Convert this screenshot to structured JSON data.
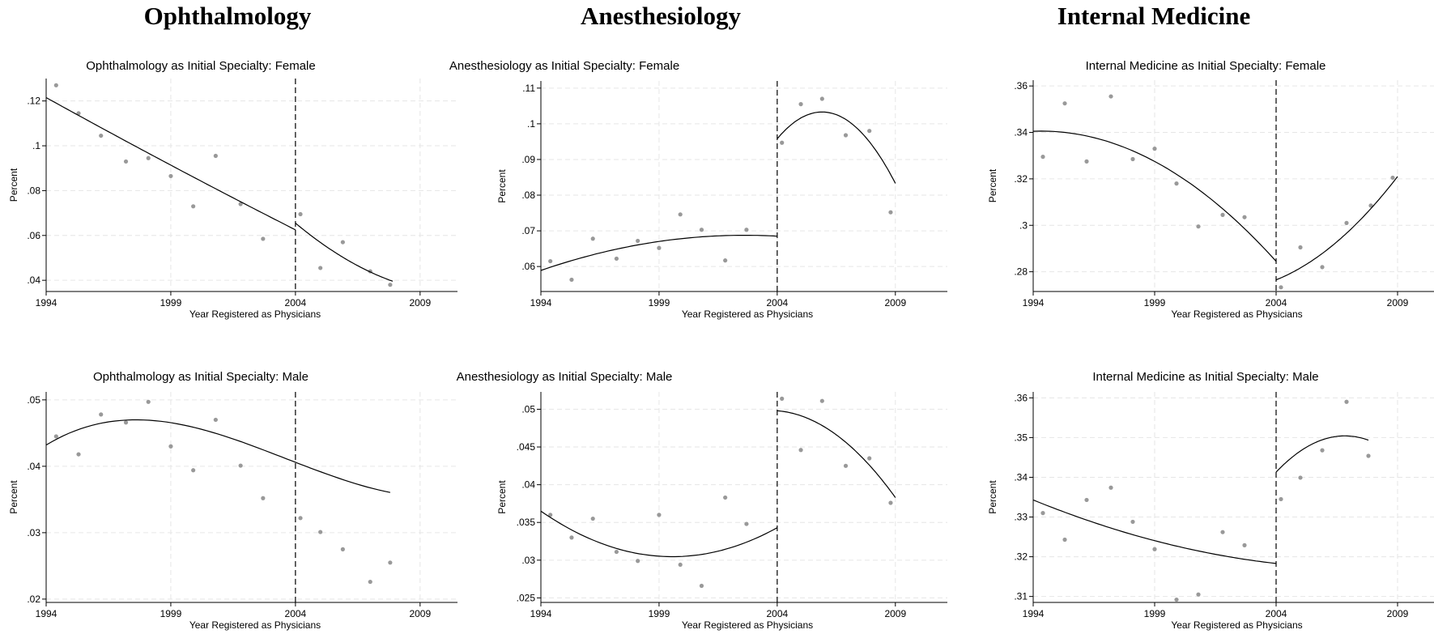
{
  "column_titles": [
    "Ophthalmology",
    "Anesthesiology",
    "Internal Medicine"
  ],
  "chart_data": [
    {
      "type": "scatter",
      "title": "Ophthalmology as Initial Specialty: Female",
      "xlabel": "Year Registered as Physicians",
      "ylabel": "Percent",
      "xlim": [
        1994,
        2010.5
      ],
      "ylim": [
        0.035,
        0.13
      ],
      "xticks": [
        1994,
        1999,
        2004,
        2009
      ],
      "xtick_labels": [
        "1994",
        "1999",
        "2004",
        "2009"
      ],
      "yticks": [
        0.04,
        0.06,
        0.08,
        0.1,
        0.12
      ],
      "ytick_labels": [
        ".04",
        ".06",
        ".08",
        ".1",
        ".12"
      ],
      "cutoff": 2004,
      "grid": true,
      "points": [
        [
          1994.4,
          0.127
        ],
        [
          1995.3,
          0.1145
        ],
        [
          1996.2,
          0.1045
        ],
        [
          1997.2,
          0.093
        ],
        [
          1998.1,
          0.0945
        ],
        [
          1999.0,
          0.0865
        ],
        [
          1999.9,
          0.073
        ],
        [
          2000.8,
          0.0955
        ],
        [
          2001.8,
          0.074
        ],
        [
          2002.7,
          0.0585
        ],
        [
          2004.2,
          0.0695
        ],
        [
          2005.0,
          0.0455
        ],
        [
          2005.9,
          0.057
        ],
        [
          2007.0,
          0.044
        ],
        [
          2007.8,
          0.038
        ]
      ],
      "fit": [
        {
          "from": 1994.0,
          "to": 2004.0,
          "coef": [
            0.1215,
            -0.00615,
            2.5e-05
          ]
        },
        {
          "from": 2004.0,
          "to": 2007.9,
          "coef": [
            0.0655,
            -0.0093,
            0.00068
          ]
        }
      ]
    },
    {
      "type": "scatter",
      "title": "Anesthesiology as Initial Specialty: Female",
      "xlabel": "Year Registered as Physicians",
      "ylabel": "Percent",
      "xlim": [
        1994,
        2011.2
      ],
      "ylim": [
        0.053,
        0.112
      ],
      "xticks": [
        1994,
        1999,
        2004,
        2009
      ],
      "xtick_labels": [
        "1994",
        "1999",
        "2004",
        "2009"
      ],
      "yticks": [
        0.06,
        0.07,
        0.08,
        0.09,
        0.1,
        0.11
      ],
      "ytick_labels": [
        ".06",
        ".07",
        ".08",
        ".09",
        ".1",
        ".11"
      ],
      "cutoff": 2004,
      "grid": true,
      "points": [
        [
          1994.4,
          0.0615
        ],
        [
          1995.3,
          0.0563
        ],
        [
          1996.2,
          0.0678
        ],
        [
          1997.2,
          0.0622
        ],
        [
          1998.1,
          0.0672
        ],
        [
          1999.0,
          0.0652
        ],
        [
          1999.9,
          0.0746
        ],
        [
          2000.8,
          0.0703
        ],
        [
          2001.8,
          0.0617
        ],
        [
          2002.7,
          0.0703
        ],
        [
          2004.2,
          0.0947
        ],
        [
          2005.0,
          0.1055
        ],
        [
          2005.9,
          0.107
        ],
        [
          2006.9,
          0.0968
        ],
        [
          2007.9,
          0.098
        ],
        [
          2008.8,
          0.0752
        ]
      ],
      "fit": [
        {
          "from": 1994.0,
          "to": 2004.0,
          "coef": [
            0.0589,
            0.00229,
            -0.000133
          ]
        },
        {
          "from": 2004.0,
          "to": 2009.0,
          "coef": [
            0.0958,
            0.0079,
            -0.00208
          ]
        }
      ]
    },
    {
      "type": "scatter",
      "title": "Internal Medicine as Initial Specialty: Female",
      "xlabel": "Year Registered as Physicians",
      "ylabel": "Percent",
      "xlim": [
        1994,
        2010.5
      ],
      "ylim": [
        0.2715,
        0.3625
      ],
      "xticks": [
        1994,
        1999,
        2004,
        2009
      ],
      "xtick_labels": [
        "1994",
        "1999",
        "2004",
        "2009"
      ],
      "yticks": [
        0.28,
        0.3,
        0.32,
        0.34,
        0.36
      ],
      "ytick_labels": [
        ".28",
        ".3",
        ".32",
        ".34",
        ".36"
      ],
      "cutoff": 2004,
      "grid": true,
      "points": [
        [
          1994.4,
          0.3295
        ],
        [
          1995.3,
          0.3525
        ],
        [
          1996.2,
          0.3275
        ],
        [
          1997.2,
          0.3555
        ],
        [
          1998.1,
          0.3285
        ],
        [
          1999.0,
          0.333
        ],
        [
          1999.9,
          0.318
        ],
        [
          2000.8,
          0.2995
        ],
        [
          2001.8,
          0.3045
        ],
        [
          2002.7,
          0.3035
        ],
        [
          2004.2,
          0.2733
        ],
        [
          2005.0,
          0.2905
        ],
        [
          2005.9,
          0.282
        ],
        [
          2006.9,
          0.301
        ],
        [
          2007.9,
          0.3085
        ],
        [
          2008.8,
          0.3205
        ]
      ],
      "fit": [
        {
          "from": 1994.0,
          "to": 2004.0,
          "coef": [
            0.3405,
            0.0004,
            -0.0006
          ]
        },
        {
          "from": 2004.0,
          "to": 2009.0,
          "coef": [
            0.2765,
            0.0042,
            0.00094
          ]
        }
      ]
    },
    {
      "type": "scatter",
      "title": "Ophthalmology as Initial Specialty: Male",
      "xlabel": "Year Registered as Physicians",
      "ylabel": "Percent",
      "xlim": [
        1994,
        2010.5
      ],
      "ylim": [
        0.0195,
        0.0512
      ],
      "xticks": [
        1994,
        1999,
        2004,
        2009
      ],
      "xtick_labels": [
        "1994",
        "1999",
        "2004",
        "2009"
      ],
      "yticks": [
        0.02,
        0.03,
        0.04,
        0.05
      ],
      "ytick_labels": [
        ".02",
        ".03",
        ".04",
        ".05"
      ],
      "cutoff": 2004,
      "grid": true,
      "points": [
        [
          1994.4,
          0.0445
        ],
        [
          1995.3,
          0.0418
        ],
        [
          1996.2,
          0.0478
        ],
        [
          1997.2,
          0.0466
        ],
        [
          1998.1,
          0.0497
        ],
        [
          1999.0,
          0.043
        ],
        [
          1999.9,
          0.0394
        ],
        [
          2000.8,
          0.047
        ],
        [
          2001.8,
          0.0401
        ],
        [
          2002.7,
          0.0352
        ],
        [
          2004.2,
          0.0322
        ],
        [
          2005.0,
          0.0301
        ],
        [
          2005.9,
          0.0275
        ],
        [
          2007.0,
          0.0226
        ],
        [
          2007.8,
          0.0255
        ]
      ],
      "fit": [
        {
          "from": 1994.0,
          "to": 2007.8,
          "coef": [
            0.0432,
            0.00228,
            -0.000389,
            1.35e-05
          ]
        }
      ]
    },
    {
      "type": "scatter",
      "title": "Anesthesiology as Initial Specialty: Male",
      "xlabel": "Year Registered as Physicians",
      "ylabel": "Percent",
      "xlim": [
        1994,
        2011.2
      ],
      "ylim": [
        0.0244,
        0.0523
      ],
      "xticks": [
        1994,
        1999,
        2004,
        2009
      ],
      "xtick_labels": [
        "1994",
        "1999",
        "2004",
        "2009"
      ],
      "yticks": [
        0.025,
        0.03,
        0.035,
        0.04,
        0.045,
        0.05
      ],
      "ytick_labels": [
        ".025",
        ".03",
        ".035",
        ".04",
        ".045",
        ".05"
      ],
      "cutoff": 2004,
      "grid": true,
      "points": [
        [
          1994.4,
          0.036
        ],
        [
          1995.3,
          0.033
        ],
        [
          1996.2,
          0.0355
        ],
        [
          1997.2,
          0.0311
        ],
        [
          1998.1,
          0.0299
        ],
        [
          1999.0,
          0.036
        ],
        [
          1999.9,
          0.0294
        ],
        [
          2000.8,
          0.0266
        ],
        [
          2001.8,
          0.0383
        ],
        [
          2002.7,
          0.0348
        ],
        [
          2004.2,
          0.0514
        ],
        [
          2005.0,
          0.0446
        ],
        [
          2005.9,
          0.0511
        ],
        [
          2006.9,
          0.0425
        ],
        [
          2007.9,
          0.0435
        ],
        [
          2008.8,
          0.0376
        ]
      ],
      "fit": [
        {
          "from": 1994.0,
          "to": 2004.0,
          "coef": [
            0.0365,
            -0.00217,
            0.000195
          ]
        },
        {
          "from": 2004.0,
          "to": 2009.0,
          "coef": [
            0.0498,
            -0.00025,
            -0.00041
          ]
        }
      ]
    },
    {
      "type": "scatter",
      "title": "Internal Medicine as Initial Specialty: Male",
      "xlabel": "Year Registered as Physicians",
      "ylabel": "Percent",
      "xlim": [
        1994,
        2010.5
      ],
      "ylim": [
        0.3085,
        0.3615
      ],
      "xticks": [
        1994,
        1999,
        2004,
        2009
      ],
      "xtick_labels": [
        "1994",
        "1999",
        "2004",
        "2009"
      ],
      "yticks": [
        0.31,
        0.32,
        0.33,
        0.34,
        0.35,
        0.36
      ],
      "ytick_labels": [
        ".31",
        ".32",
        ".33",
        ".34",
        ".35",
        ".36"
      ],
      "cutoff": 2004,
      "grid": true,
      "points": [
        [
          1994.4,
          0.331
        ],
        [
          1995.3,
          0.3243
        ],
        [
          1996.2,
          0.3343
        ],
        [
          1997.2,
          0.3374
        ],
        [
          1998.1,
          0.3288
        ],
        [
          1999.0,
          0.3219
        ],
        [
          1999.9,
          0.3092
        ],
        [
          2000.8,
          0.3105
        ],
        [
          2001.8,
          0.3262
        ],
        [
          2002.7,
          0.3229
        ],
        [
          2004.2,
          0.3345
        ],
        [
          2005.0,
          0.3399
        ],
        [
          2005.9,
          0.3468
        ],
        [
          2006.9,
          0.359
        ],
        [
          2007.8,
          0.3454
        ]
      ],
      "fit": [
        {
          "from": 1994.0,
          "to": 2004.0,
          "coef": [
            0.3343,
            -0.0025,
            9e-05
          ]
        },
        {
          "from": 2004.0,
          "to": 2007.8,
          "coef": [
            0.3413,
            0.00645,
            -0.00114
          ]
        }
      ]
    }
  ]
}
